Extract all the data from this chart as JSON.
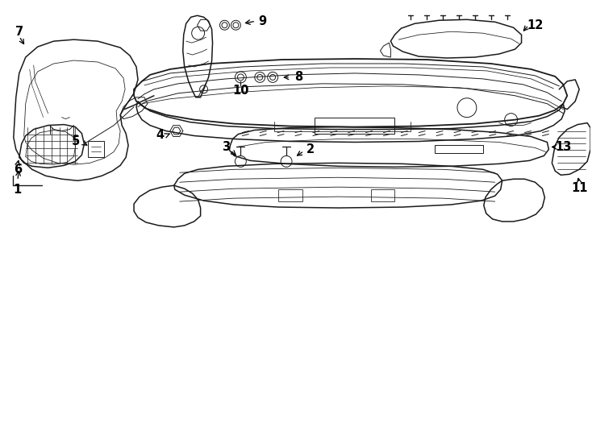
{
  "bg_color": "#ffffff",
  "line_color": "#1a1a1a",
  "fig_width": 7.34,
  "fig_height": 5.4,
  "dpi": 100
}
